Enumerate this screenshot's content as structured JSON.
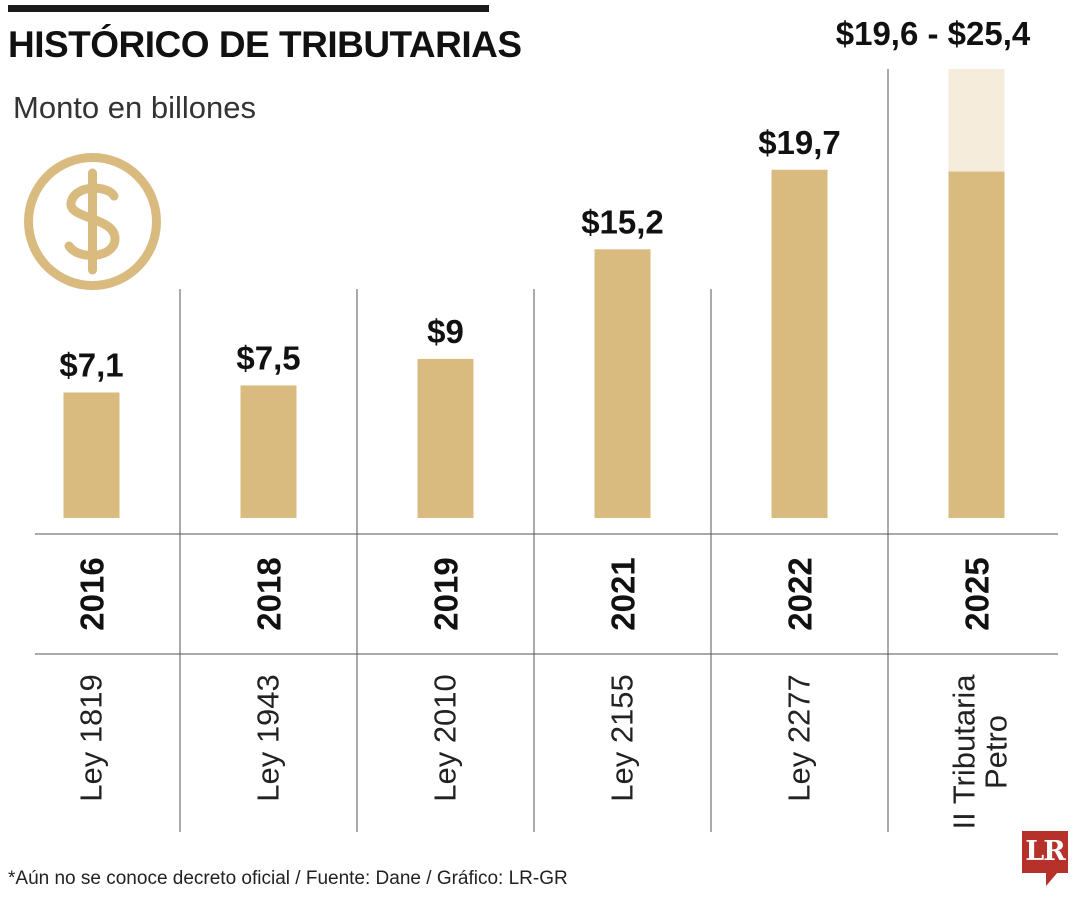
{
  "header": {
    "title": "HISTÓRICO DE TRIBUTARIAS",
    "subtitle": "Monto en billones"
  },
  "footer": {
    "source": "*Aún no se conoce decreto oficial / Fuente: Dane / Gráfico: LR-GR",
    "logo_text": "LR"
  },
  "icons": {
    "header_icon": "dollar-icon"
  },
  "colors": {
    "bar": "#d9bb80",
    "bar_range": "#f6ecdc",
    "divider": "#555555"
  },
  "chart_data": {
    "type": "bar",
    "title": "HISTÓRICO DE TRIBUTARIAS",
    "subtitle": "Monto en billones",
    "categories": [
      "2016",
      "2018",
      "2019",
      "2021",
      "2022",
      "2025"
    ],
    "laws": [
      "Ley 1819",
      "Ley 1943",
      "Ley 2010",
      "Ley 2155",
      "Ley 2277",
      [
        "II Tributaria",
        "Petro"
      ]
    ],
    "values": [
      7.1,
      7.5,
      9,
      15.2,
      19.7,
      19.6
    ],
    "range_high": [
      null,
      null,
      null,
      null,
      null,
      25.4
    ],
    "value_labels": [
      "$7,1",
      "$7,5",
      "$9",
      "$15,2",
      "$19,7",
      "$19,6 - $25,4"
    ],
    "ylim": [
      0,
      25.4
    ]
  }
}
